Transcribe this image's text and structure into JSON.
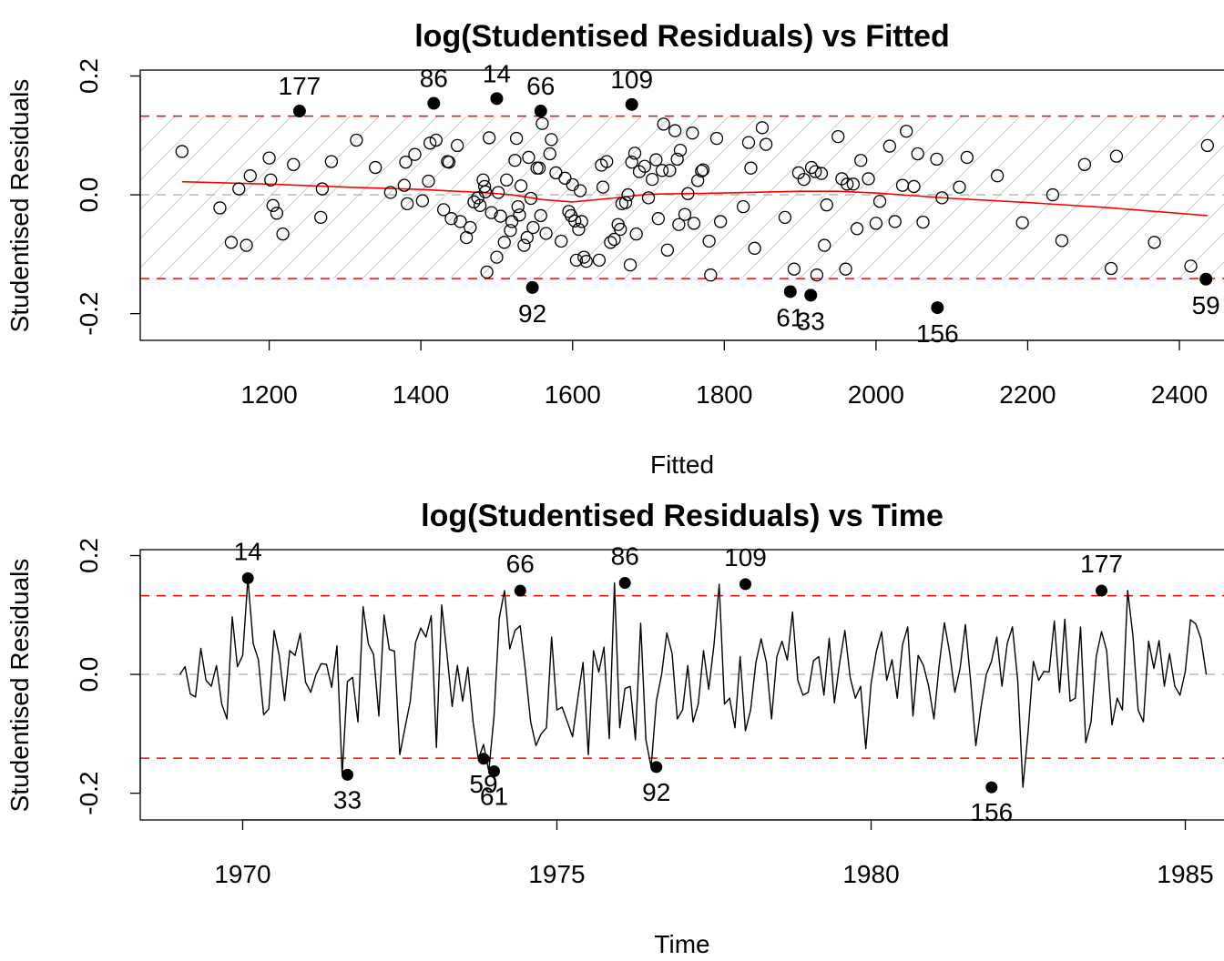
{
  "chart_data": [
    {
      "type": "scatter",
      "title": "log(Studentised Residuals) vs Fitted",
      "xlabel": "Fitted",
      "ylabel": "Studentised Residuals",
      "xlim": [
        1030,
        2460
      ],
      "ylim": [
        -0.245,
        0.21
      ],
      "xticks": [
        1200,
        1400,
        1600,
        1800,
        2000,
        2200,
        2400
      ],
      "xtick_labels": [
        "1200",
        "1400",
        "1600",
        "1800",
        "2000",
        "2200",
        "2400"
      ],
      "yticks": [
        -0.2,
        0.0,
        0.2
      ],
      "ytick_labels": [
        "-0.2",
        "0.0",
        "0.2"
      ],
      "thresholds": [
        0.1324,
        -0.1411
      ],
      "zero_line": 0,
      "shaded_band": true,
      "colors": {
        "threshold": "#ff0000",
        "smooth": "#ff0000",
        "zero": "#bebebe",
        "hatch": "#d3d3d3",
        "points": "#000000"
      },
      "smooth": {
        "x": [
          1085,
          1200,
          1300,
          1400,
          1480,
          1520,
          1560,
          1600,
          1650,
          1700,
          1800,
          1900,
          1950,
          2000,
          2100,
          2200,
          2300,
          2437
        ],
        "y": [
          0.022,
          0.018,
          0.013,
          0.009,
          0.004,
          0.0,
          -0.008,
          -0.012,
          -0.006,
          0.001,
          0.003,
          0.006,
          0.006,
          0.003,
          -0.006,
          -0.013,
          -0.021,
          -0.035
        ]
      },
      "outliers": [
        {
          "label": "177",
          "x": 1240,
          "y": 0.141
        },
        {
          "label": "86",
          "x": 1417,
          "y": 0.154
        },
        {
          "label": "14",
          "x": 1500,
          "y": 0.162
        },
        {
          "label": "66",
          "x": 1558,
          "y": 0.141
        },
        {
          "label": "109",
          "x": 1678,
          "y": 0.152
        },
        {
          "label": "92",
          "x": 1547,
          "y": -0.156
        },
        {
          "label": "61",
          "x": 1887,
          "y": -0.163
        },
        {
          "label": "33",
          "x": 1914,
          "y": -0.169
        },
        {
          "label": "156",
          "x": 2081,
          "y": -0.19
        },
        {
          "label": "59",
          "x": 2435,
          "y": -0.142
        }
      ],
      "points": [
        [
          1085,
          0.073
        ],
        [
          1135,
          -0.022
        ],
        [
          1150,
          -0.08
        ],
        [
          1160,
          0.01
        ],
        [
          1170,
          -0.085
        ],
        [
          1175,
          0.032
        ],
        [
          1200,
          0.062
        ],
        [
          1202,
          0.025
        ],
        [
          1205,
          -0.018
        ],
        [
          1210,
          -0.031
        ],
        [
          1218,
          -0.066
        ],
        [
          1232,
          0.051
        ],
        [
          1270,
          0.01
        ],
        [
          1268,
          -0.038
        ],
        [
          1282,
          0.056
        ],
        [
          1315,
          0.092
        ],
        [
          1340,
          0.046
        ],
        [
          1360,
          0.004
        ],
        [
          1378,
          0.016
        ],
        [
          1380,
          0.055
        ],
        [
          1382,
          -0.015
        ],
        [
          1392,
          0.068
        ],
        [
          1402,
          -0.01
        ],
        [
          1410,
          0.023
        ],
        [
          1412,
          0.087
        ],
        [
          1420,
          0.092
        ],
        [
          1430,
          -0.025
        ],
        [
          1435,
          0.056
        ],
        [
          1437,
          0.055
        ],
        [
          1440,
          -0.04
        ],
        [
          1448,
          0.083
        ],
        [
          1452,
          -0.045
        ],
        [
          1460,
          -0.072
        ],
        [
          1465,
          -0.055
        ],
        [
          1470,
          -0.012
        ],
        [
          1475,
          -0.005
        ],
        [
          1478,
          -0.018
        ],
        [
          1482,
          0.025
        ],
        [
          1484,
          0.014
        ],
        [
          1485,
          0.005
        ],
        [
          1487,
          -0.13
        ],
        [
          1490,
          0.096
        ],
        [
          1493,
          -0.03
        ],
        [
          1500,
          -0.105
        ],
        [
          1502,
          0.004
        ],
        [
          1505,
          -0.036
        ],
        [
          1510,
          -0.08
        ],
        [
          1513,
          0.025
        ],
        [
          1518,
          -0.06
        ],
        [
          1520,
          -0.045
        ],
        [
          1524,
          0.058
        ],
        [
          1526,
          0.095
        ],
        [
          1528,
          -0.02
        ],
        [
          1530,
          -0.034
        ],
        [
          1532,
          0.015
        ],
        [
          1536,
          -0.085
        ],
        [
          1540,
          -0.072
        ],
        [
          1542,
          0.063
        ],
        [
          1545,
          -0.006
        ],
        [
          1548,
          -0.055
        ],
        [
          1553,
          0.045
        ],
        [
          1556,
          0.045
        ],
        [
          1558,
          -0.035
        ],
        [
          1560,
          0.12
        ],
        [
          1565,
          -0.065
        ],
        [
          1570,
          0.069
        ],
        [
          1572,
          0.093
        ],
        [
          1578,
          0.037
        ],
        [
          1585,
          -0.078
        ],
        [
          1590,
          0.028
        ],
        [
          1595,
          -0.028
        ],
        [
          1598,
          -0.035
        ],
        [
          1600,
          0.017
        ],
        [
          1603,
          -0.044
        ],
        [
          1605,
          -0.11
        ],
        [
          1608,
          -0.058
        ],
        [
          1610,
          0.007
        ],
        [
          1612,
          -0.045
        ],
        [
          1615,
          -0.105
        ],
        [
          1618,
          -0.112
        ],
        [
          1635,
          -0.11
        ],
        [
          1638,
          0.05
        ],
        [
          1640,
          0.013
        ],
        [
          1645,
          0.056
        ],
        [
          1650,
          -0.08
        ],
        [
          1655,
          -0.075
        ],
        [
          1660,
          -0.05
        ],
        [
          1663,
          -0.058
        ],
        [
          1665,
          -0.015
        ],
        [
          1670,
          -0.013
        ],
        [
          1673,
          0.0
        ],
        [
          1676,
          -0.118
        ],
        [
          1678,
          0.055
        ],
        [
          1682,
          0.07
        ],
        [
          1684,
          -0.066
        ],
        [
          1688,
          0.039
        ],
        [
          1695,
          0.048
        ],
        [
          1700,
          -0.005
        ],
        [
          1705,
          0.026
        ],
        [
          1710,
          0.059
        ],
        [
          1713,
          -0.04
        ],
        [
          1718,
          0.041
        ],
        [
          1720,
          0.119
        ],
        [
          1725,
          -0.093
        ],
        [
          1728,
          0.041
        ],
        [
          1735,
          0.108
        ],
        [
          1738,
          0.06
        ],
        [
          1740,
          -0.05
        ],
        [
          1742,
          0.075
        ],
        [
          1748,
          -0.033
        ],
        [
          1752,
          0.002
        ],
        [
          1758,
          0.104
        ],
        [
          1760,
          -0.048
        ],
        [
          1765,
          0.024
        ],
        [
          1770,
          0.04
        ],
        [
          1772,
          0.042
        ],
        [
          1780,
          -0.078
        ],
        [
          1782,
          -0.135
        ],
        [
          1790,
          0.095
        ],
        [
          1795,
          -0.045
        ],
        [
          1825,
          -0.02
        ],
        [
          1832,
          0.088
        ],
        [
          1835,
          0.045
        ],
        [
          1840,
          -0.09
        ],
        [
          1850,
          0.113
        ],
        [
          1855,
          0.085
        ],
        [
          1880,
          -0.038
        ],
        [
          1892,
          -0.125
        ],
        [
          1898,
          0.037
        ],
        [
          1905,
          0.026
        ],
        [
          1915,
          0.046
        ],
        [
          1920,
          0.039
        ],
        [
          1922,
          -0.135
        ],
        [
          1928,
          0.036
        ],
        [
          1932,
          -0.085
        ],
        [
          1935,
          -0.017
        ],
        [
          1950,
          0.098
        ],
        [
          1955,
          0.027
        ],
        [
          1960,
          -0.125
        ],
        [
          1962,
          0.018
        ],
        [
          1970,
          0.018
        ],
        [
          1975,
          -0.057
        ],
        [
          1980,
          0.058
        ],
        [
          1990,
          0.027
        ],
        [
          2000,
          -0.048
        ],
        [
          2005,
          -0.011
        ],
        [
          2018,
          0.082
        ],
        [
          2025,
          -0.045
        ],
        [
          2035,
          0.016
        ],
        [
          2040,
          0.107
        ],
        [
          2050,
          0.014
        ],
        [
          2055,
          0.069
        ],
        [
          2062,
          -0.046
        ],
        [
          2080,
          0.06
        ],
        [
          2087,
          -0.005
        ],
        [
          2110,
          0.013
        ],
        [
          2120,
          0.063
        ],
        [
          2160,
          0.032
        ],
        [
          2193,
          -0.047
        ],
        [
          2233,
          0.0
        ],
        [
          2245,
          -0.077
        ],
        [
          2275,
          0.051
        ],
        [
          2310,
          -0.124
        ],
        [
          2317,
          0.065
        ],
        [
          2367,
          -0.08
        ],
        [
          2415,
          -0.12
        ],
        [
          2437,
          0.083
        ]
      ]
    },
    {
      "type": "line",
      "title": "log(Studentised Residuals) vs Time",
      "xlabel": "Time",
      "ylabel": "Studentised Residuals",
      "xlim": [
        1968.37,
        1985.63
      ],
      "ylim": [
        -0.245,
        0.21
      ],
      "xticks": [
        1970,
        1975,
        1980,
        1985
      ],
      "xtick_labels": [
        "1970",
        "1975",
        "1980",
        "1985"
      ],
      "yticks": [
        -0.2,
        0.0,
        0.2
      ],
      "ytick_labels": [
        "-0.2",
        "0.0",
        "0.2"
      ],
      "thresholds": [
        0.1324,
        -0.1411
      ],
      "zero_line": 0,
      "colors": {
        "threshold": "#ff0000",
        "line": "#000000",
        "zero": "#bebebe",
        "points": "#000000"
      },
      "x_start": 1969.0,
      "x_step": 0.08333,
      "series": [
        {
          "values": [
            0.0,
            0.013,
            -0.033,
            -0.038,
            0.044,
            -0.01,
            -0.02,
            0.015,
            -0.05,
            -0.075,
            0.097,
            0.013,
            0.032,
            0.162,
            0.052,
            0.025,
            -0.068,
            -0.058,
            0.074,
            0.031,
            -0.044,
            0.04,
            0.032,
            0.069,
            -0.013,
            -0.03,
            0.0,
            0.018,
            0.017,
            -0.022,
            0.048,
            -0.169,
            -0.012,
            -0.005,
            -0.08,
            0.114,
            0.051,
            0.034,
            -0.07,
            0.1,
            0.042,
            0.039,
            -0.135,
            -0.09,
            -0.045,
            0.053,
            0.078,
            0.063,
            0.099,
            -0.123,
            0.117,
            0.036,
            -0.054,
            0.015,
            -0.045,
            0.012,
            -0.08,
            -0.142,
            -0.118,
            -0.163,
            -0.07,
            0.095,
            0.141,
            0.043,
            0.074,
            0.082,
            0.005,
            -0.08,
            -0.12,
            -0.1,
            -0.09,
            0.063,
            -0.06,
            -0.055,
            -0.08,
            -0.105,
            -0.04,
            0.02,
            -0.135,
            0.04,
            0.004,
            0.046,
            -0.108,
            0.154,
            -0.09,
            -0.024,
            -0.02,
            -0.11,
            0.086,
            -0.11,
            -0.156,
            -0.045,
            0.0,
            0.07,
            0.035,
            -0.075,
            -0.06,
            0.015,
            -0.08,
            -0.05,
            0.04,
            -0.025,
            0.05,
            0.152,
            -0.05,
            -0.04,
            -0.09,
            0.03,
            -0.095,
            -0.06,
            0.02,
            0.06,
            0.02,
            -0.075,
            0.03,
            0.056,
            0.024,
            0.105,
            -0.01,
            -0.035,
            -0.03,
            0.023,
            0.03,
            -0.035,
            0.061,
            -0.048,
            0.02,
            0.074,
            -0.005,
            -0.04,
            -0.02,
            -0.125,
            -0.015,
            0.038,
            0.072,
            -0.01,
            0.025,
            -0.04,
            0.05,
            0.08,
            -0.07,
            0.032,
            0.015,
            -0.02,
            -0.075,
            0.015,
            0.087,
            0.037,
            -0.03,
            0.01,
            0.084,
            -0.01,
            -0.12,
            -0.055,
            0.0,
            0.022,
            0.063,
            -0.02,
            0.052,
            0.08,
            -0.01,
            -0.19,
            -0.095,
            0.022,
            -0.01,
            0.005,
            0.004,
            0.09,
            -0.03,
            0.093,
            -0.045,
            -0.04,
            0.08,
            -0.115,
            -0.08,
            0.03,
            0.072,
            0.04,
            -0.085,
            -0.04,
            -0.06,
            0.141,
            0.065,
            -0.06,
            -0.08,
            0.056,
            0.01,
            0.057,
            -0.02,
            0.035,
            -0.02,
            -0.035,
            0.005,
            0.092,
            0.085,
            0.06,
            0.0
          ]
        }
      ],
      "labelled_points": [
        {
          "label": "14",
          "x": 1970.083,
          "y": 0.162
        },
        {
          "label": "33",
          "x": 1971.667,
          "y": -0.169
        },
        {
          "label": "59",
          "x": 1973.833,
          "y": -0.142
        },
        {
          "label": "61",
          "x": 1974.0,
          "y": -0.163
        },
        {
          "label": "66",
          "x": 1974.417,
          "y": 0.141
        },
        {
          "label": "86",
          "x": 1976.083,
          "y": 0.154
        },
        {
          "label": "92",
          "x": 1976.583,
          "y": -0.156
        },
        {
          "label": "109",
          "x": 1978.0,
          "y": 0.152
        },
        {
          "label": "156",
          "x": 1981.917,
          "y": -0.19
        },
        {
          "label": "177",
          "x": 1983.667,
          "y": 0.141
        }
      ]
    }
  ]
}
